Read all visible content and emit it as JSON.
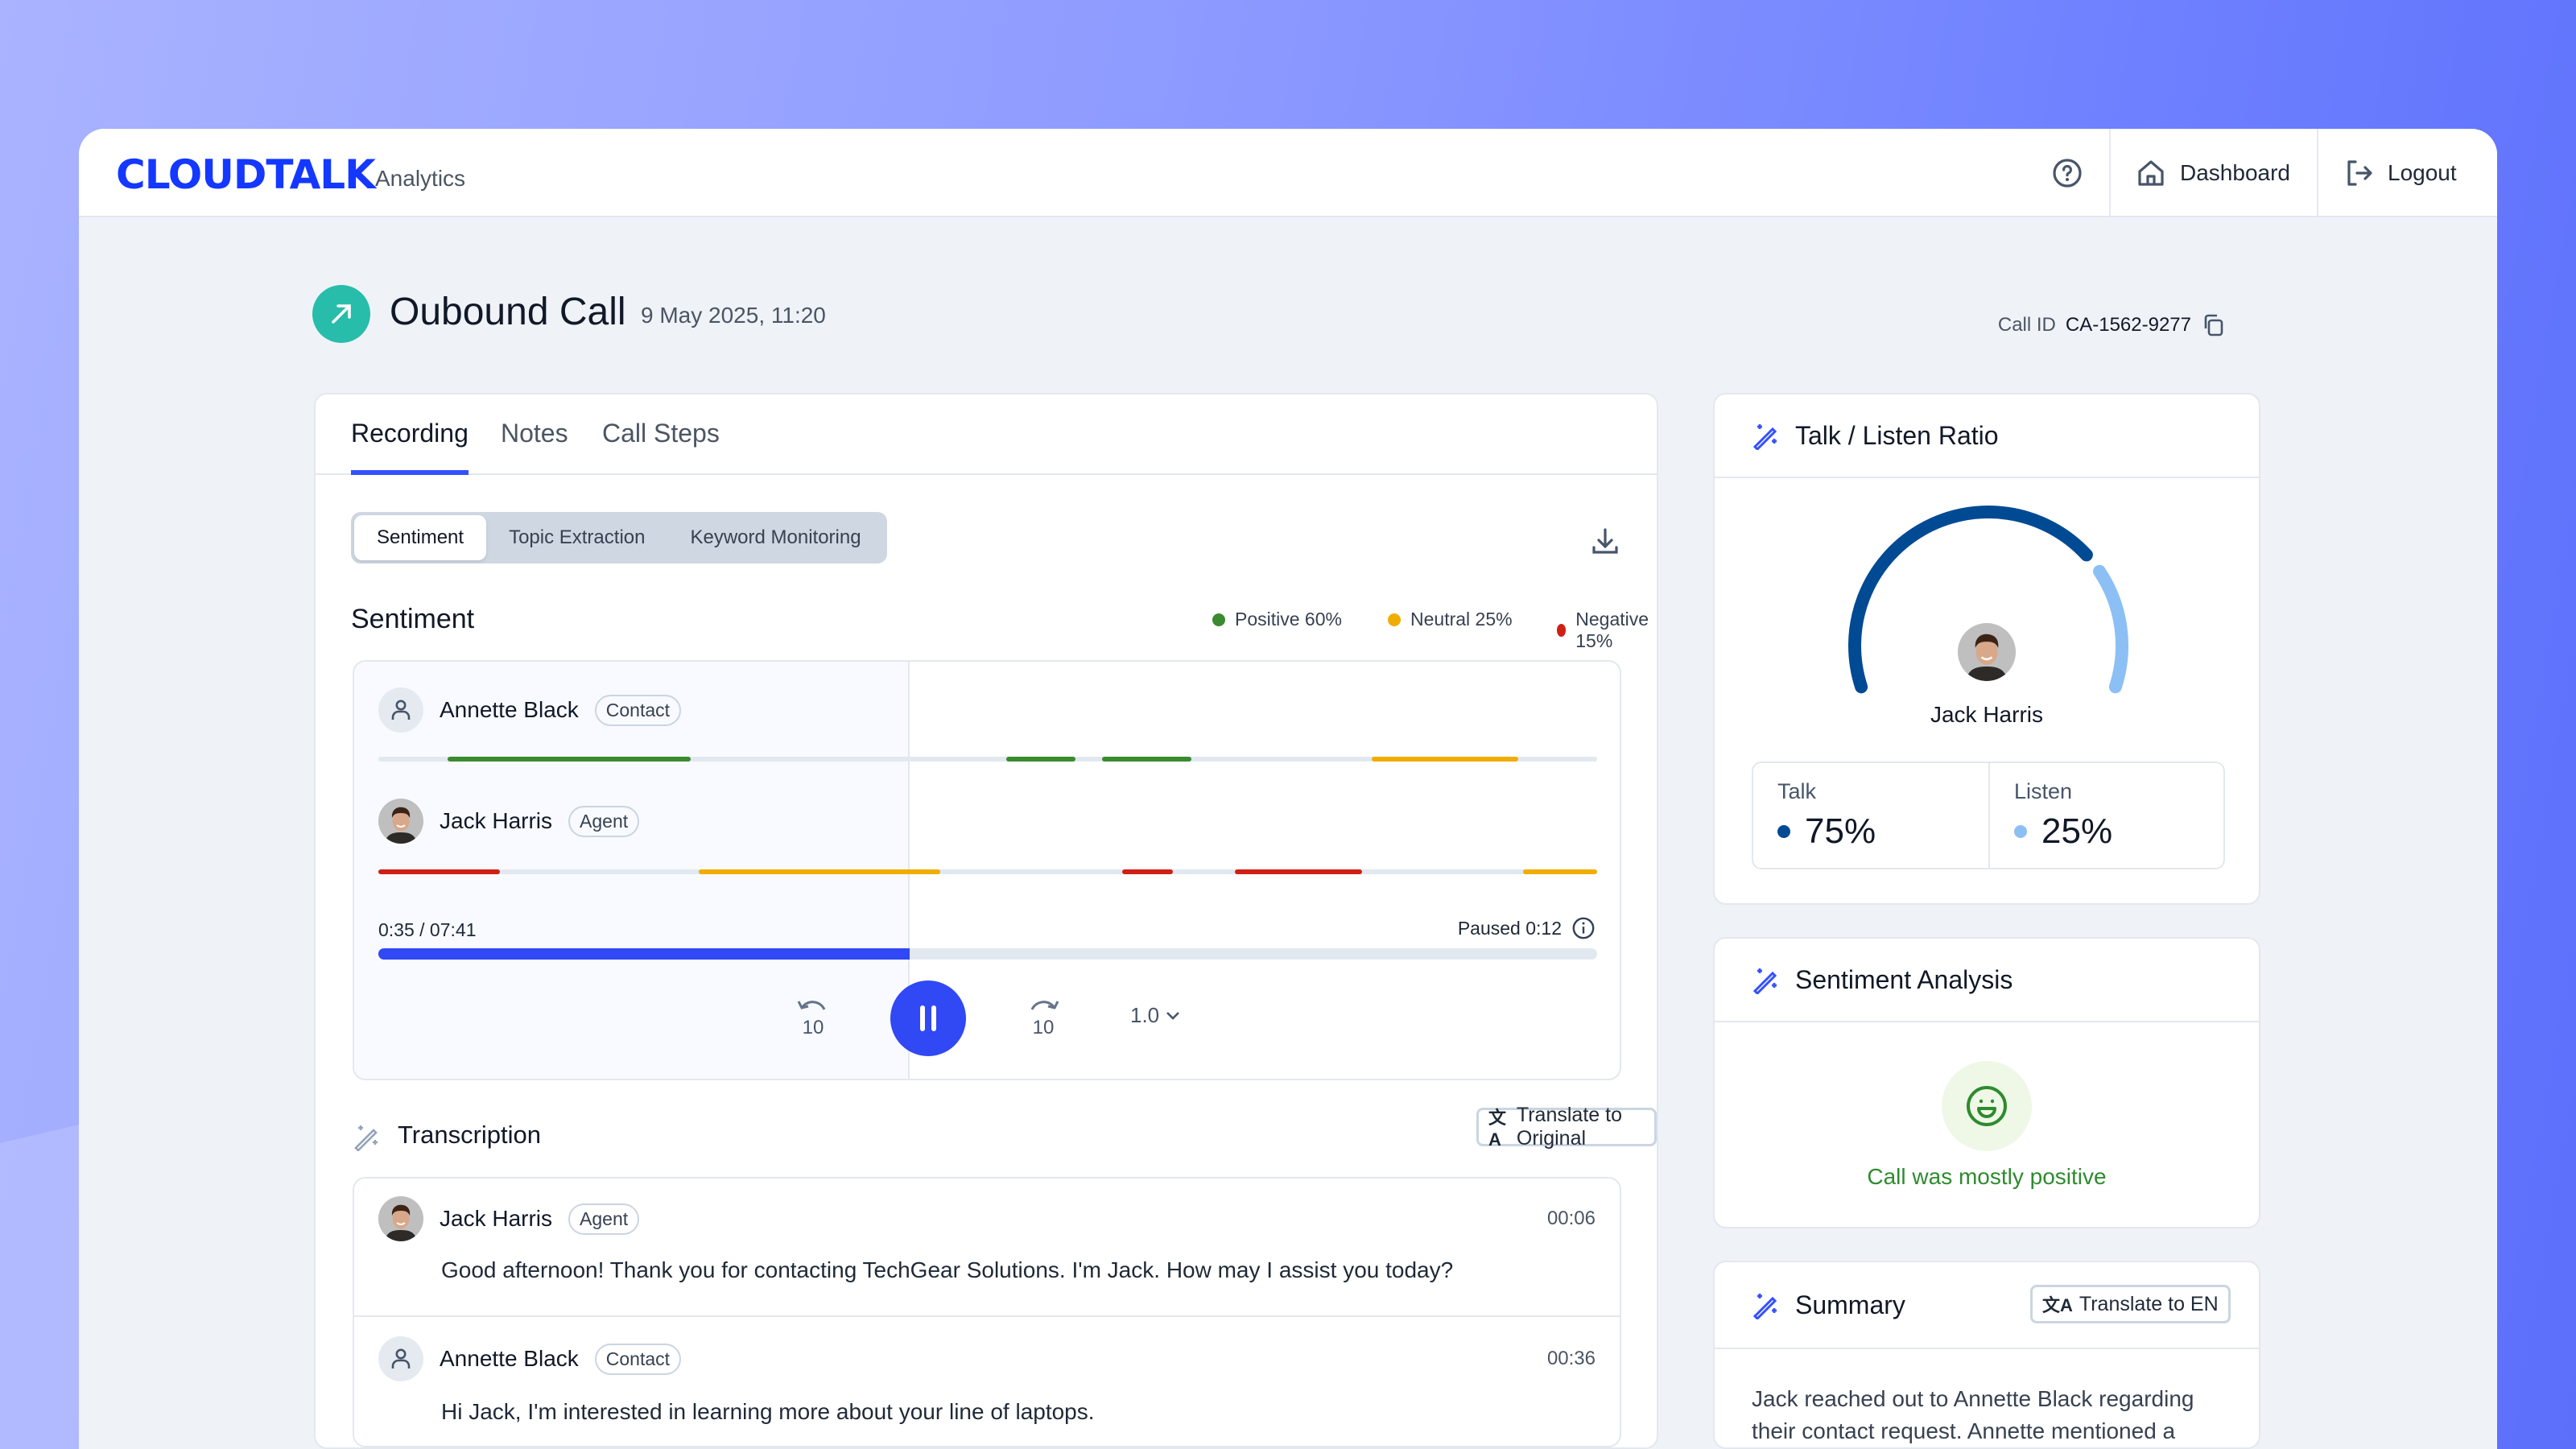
{
  "app": {
    "logo": "CLOUDTALK",
    "subtitle": "Analytics"
  },
  "header": {
    "help_icon": "help-circle-icon",
    "dashboard": "Dashboard",
    "logout": "Logout"
  },
  "call": {
    "title": "Oubound Call",
    "date": "9 May 2025, 11:20",
    "id_label": "Call ID",
    "id": "CA-1562-9277"
  },
  "tabs": [
    {
      "label": "Recording",
      "active": true
    },
    {
      "label": "Notes"
    },
    {
      "label": "Call Steps"
    }
  ],
  "analysis_tabs": [
    {
      "label": "Sentiment",
      "active": true
    },
    {
      "label": "Topic Extraction"
    },
    {
      "label": "Keyword Monitoring"
    }
  ],
  "sentiment": {
    "heading": "Sentiment",
    "legend": [
      {
        "label": "Positive 60%",
        "color": "#3a8a2f"
      },
      {
        "label": "Neutral 25%",
        "color": "#f0ad00"
      },
      {
        "label": "Negative 15%",
        "color": "#d01f14"
      }
    ],
    "colors": {
      "positive": "#3a8a2f",
      "neutral": "#f0ad00",
      "negative": "#d01f14"
    },
    "speakers": [
      {
        "name": "Annette Black",
        "role": "Contact",
        "segments": [
          {
            "start": 5.7,
            "end": 25.6,
            "type": "positive"
          },
          {
            "start": 51.5,
            "end": 57.2,
            "type": "positive"
          },
          {
            "start": 59.4,
            "end": 66.7,
            "type": "positive"
          },
          {
            "start": 81.5,
            "end": 93.5,
            "type": "neutral"
          }
        ]
      },
      {
        "name": "Jack Harris",
        "role": "Agent",
        "segments": [
          {
            "start": 0,
            "end": 10,
            "type": "negative"
          },
          {
            "start": 26.3,
            "end": 46.1,
            "type": "neutral"
          },
          {
            "start": 61,
            "end": 65.2,
            "type": "negative"
          },
          {
            "start": 70.3,
            "end": 80.7,
            "type": "negative"
          },
          {
            "start": 93.9,
            "end": 100,
            "type": "neutral"
          }
        ]
      }
    ]
  },
  "player": {
    "time": "0:35 / 07:41",
    "paused": "Paused 0:12",
    "progress_percent": 43.6,
    "rewind": "10",
    "forward": "10",
    "speed": "1.0",
    "accent": "#3148f5"
  },
  "transcription": {
    "heading": "Transcription",
    "translate": "Translate to Original",
    "entries": [
      {
        "name": "Jack Harris",
        "role": "Agent",
        "time": "00:06",
        "text": "Good afternoon! Thank you for contacting TechGear Solutions. I'm Jack. How may I assist you today?"
      },
      {
        "name": "Annette Black",
        "role": "Contact",
        "time": "00:36",
        "text": "Hi Jack, I'm interested in learning more about your line of laptops."
      }
    ]
  },
  "talk_listen": {
    "heading": "Talk / Listen Ratio",
    "name": "Jack Harris",
    "talk_label": "Talk",
    "talk": "75%",
    "talk_value": 75,
    "listen_label": "Listen",
    "listen": "25%",
    "listen_value": 25,
    "talk_color": "#004a94",
    "listen_color": "#8cc0f5"
  },
  "sentiment_analysis": {
    "heading": "Sentiment Analysis",
    "result": "Call was mostly positive",
    "icon": "smiley-icon"
  },
  "summary": {
    "heading": "Summary",
    "translate": "Translate to EN",
    "lines": [
      "Jack reached out to Annette Black regarding",
      "their contact request. Annette mentioned a"
    ]
  }
}
